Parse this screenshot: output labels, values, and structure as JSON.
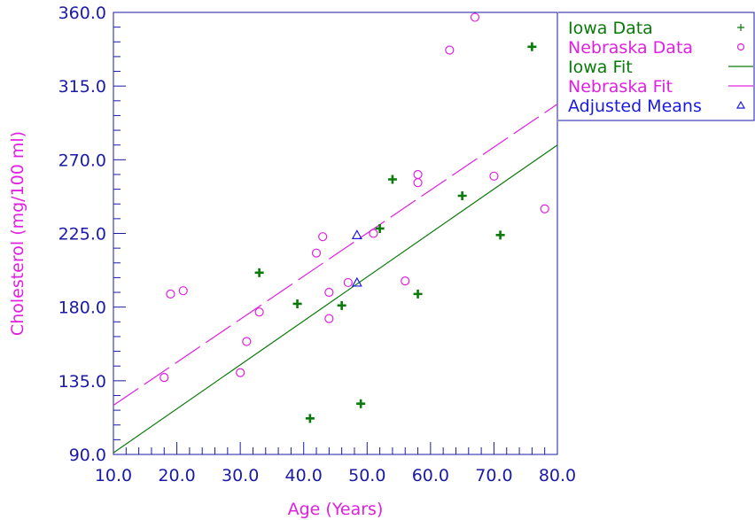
{
  "chart_data": {
    "type": "scatter",
    "title": "",
    "xlabel": "Age (Years)",
    "ylabel": "Cholesterol (mg/100 ml)",
    "xlim": [
      10,
      80
    ],
    "ylim": [
      90,
      360
    ],
    "x_ticks": [
      "10.0",
      "20.0",
      "30.0",
      "40.0",
      "50.0",
      "60.0",
      "70.0",
      "80.0"
    ],
    "y_ticks": [
      "90.0",
      "135.0",
      "180.0",
      "225.0",
      "270.0",
      "315.0",
      "360.0"
    ],
    "grid": false,
    "legend_position": "right",
    "colors": {
      "axis": "#1a1aa6",
      "iowa": "#0a7a0a",
      "nebraska": "#e020e0",
      "adjusted": "#1a1ae0"
    },
    "series": [
      {
        "name": "Iowa Data",
        "kind": "points",
        "marker": "+",
        "color": "#0a7a0a",
        "points": [
          [
            33,
            201
          ],
          [
            39,
            182
          ],
          [
            41,
            112
          ],
          [
            46,
            181
          ],
          [
            49,
            121
          ],
          [
            52,
            228
          ],
          [
            54,
            258
          ],
          [
            58,
            188
          ],
          [
            65,
            248
          ],
          [
            71,
            224
          ],
          [
            76,
            339
          ]
        ]
      },
      {
        "name": "Nebraska Data",
        "kind": "points",
        "marker": "o",
        "color": "#e020e0",
        "points": [
          [
            18,
            137
          ],
          [
            19,
            188
          ],
          [
            21,
            190
          ],
          [
            30,
            140
          ],
          [
            31,
            159
          ],
          [
            33,
            177
          ],
          [
            42,
            213
          ],
          [
            43,
            223
          ],
          [
            44,
            189
          ],
          [
            44,
            173
          ],
          [
            47,
            195
          ],
          [
            51,
            225
          ],
          [
            56,
            196
          ],
          [
            58,
            261
          ],
          [
            58,
            256
          ],
          [
            63,
            337
          ],
          [
            67,
            357
          ],
          [
            70,
            260
          ],
          [
            78,
            240
          ]
        ]
      },
      {
        "name": "Iowa Fit",
        "kind": "line",
        "dash": "solid",
        "color": "#0a7a0a",
        "points": [
          [
            10,
            91
          ],
          [
            80,
            279
          ]
        ]
      },
      {
        "name": "Nebraska Fit",
        "kind": "line",
        "dash": "dashed",
        "color": "#e020e0",
        "points": [
          [
            10,
            120
          ],
          [
            80,
            304
          ]
        ]
      },
      {
        "name": "Adjusted Means",
        "kind": "points",
        "marker": "triangle",
        "color": "#1a1ae0",
        "points": [
          [
            48.4,
            224
          ],
          [
            48.4,
            195
          ]
        ]
      }
    ]
  }
}
